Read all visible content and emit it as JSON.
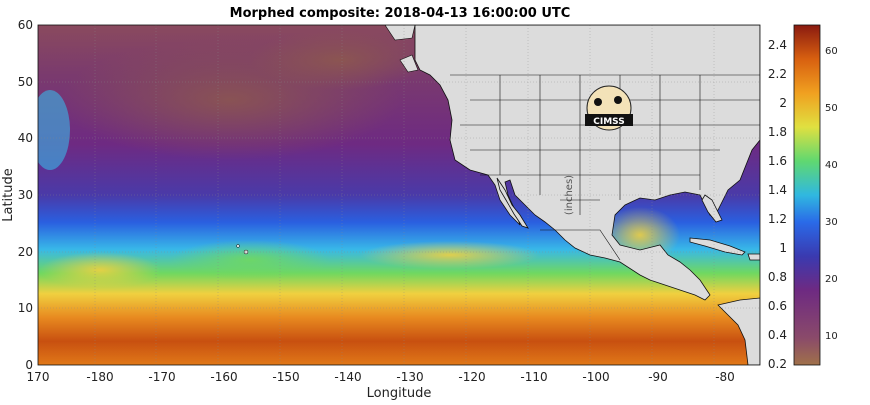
{
  "title": "Morphed composite: 2018-04-13 16:00:00 UTC",
  "xlabel": "Longitude",
  "ylabel": "Latitude",
  "x_ticks": [
    "170",
    "-180",
    "-170",
    "-160",
    "-150",
    "-140",
    "-130",
    "-120",
    "-110",
    "-100",
    "-90",
    "-80"
  ],
  "y_ticks": [
    "60",
    "50",
    "40",
    "30",
    "20",
    "10",
    "0"
  ],
  "colorbar": {
    "left_units": "(inches)",
    "left_ticks": [
      "2.4",
      "2.2",
      "2",
      "1.8",
      "1.6",
      "1.4",
      "1.2",
      "1",
      "0.8",
      "0.6",
      "0.4",
      "0.2"
    ],
    "right_ticks": [
      "60",
      "50",
      "40",
      "30",
      "20",
      "10"
    ]
  },
  "logo_text": "CIMSS",
  "colors": {
    "dry_brown": "#8a5a3c",
    "purple": "#6e2a82",
    "blue": "#2a5fe0",
    "cyan": "#38b8e8",
    "green": "#60d860",
    "yellow": "#f0d040",
    "orange": "#e07818",
    "deep_orange": "#c85010",
    "land": "#dcdcdc"
  },
  "chart_data": {
    "type": "heatmap",
    "title": "Morphed composite: 2018-04-13 16:00:00 UTC",
    "xlabel": "Longitude",
    "ylabel": "Latitude",
    "xlim": [
      170,
      -75
    ],
    "ylim": [
      0,
      60
    ],
    "colorbar_inches": [
      0.2,
      2.5
    ],
    "colorbar_mm": [
      5,
      65
    ]
  }
}
